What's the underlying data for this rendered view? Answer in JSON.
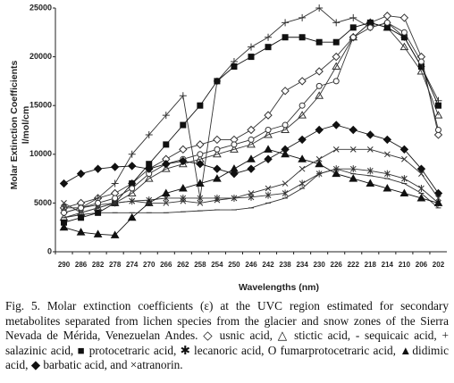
{
  "chart_data": {
    "type": "line",
    "y_label": [
      "Molar Extinction Coefficients",
      "l/mol/cm"
    ],
    "x_label": "Wavelengths (nm)",
    "categories": [
      "290",
      "286",
      "282",
      "278",
      "274",
      "270",
      "266",
      "262",
      "258",
      "254",
      "250",
      "246",
      "242",
      "238",
      "234",
      "230",
      "226",
      "222",
      "218",
      "214",
      "210",
      "206",
      "202"
    ],
    "ylim": [
      0,
      25000
    ],
    "yticks": [
      0,
      5000,
      10000,
      15000,
      20000,
      25000
    ],
    "grid": false,
    "series": [
      {
        "marker": "diamond-open",
        "color": "#333333",
        "values": [
          4500,
          5000,
          5500,
          6000,
          7000,
          8500,
          9500,
          10500,
          11000,
          11500,
          11500,
          12500,
          14000,
          16500,
          17500,
          18500,
          20000,
          22000,
          23500,
          24200,
          24000,
          20000,
          12000
        ]
      },
      {
        "marker": "triangle-open",
        "color": "#333333",
        "values": [
          3500,
          4000,
          4500,
          5000,
          6000,
          7500,
          8500,
          9000,
          9500,
          10000,
          10500,
          11000,
          12000,
          12500,
          14000,
          16000,
          19000,
          22000,
          23500,
          23000,
          21000,
          18500,
          14000
        ]
      },
      {
        "marker": "dash",
        "color": "#333333",
        "values": [
          3500,
          3800,
          4000,
          4000,
          4000,
          4000,
          4000,
          4100,
          4200,
          4300,
          4300,
          4500,
          5000,
          5500,
          6500,
          8000,
          8500,
          8000,
          7800,
          7500,
          7000,
          6000,
          4500
        ]
      },
      {
        "marker": "plus",
        "color": "#333333",
        "values": [
          4000,
          4500,
          5500,
          7000,
          10000,
          12000,
          14000,
          16000,
          5500,
          17500,
          19500,
          21000,
          22000,
          23500,
          24000,
          25000,
          23500,
          24000,
          23000,
          23500,
          22000,
          19000,
          15500
        ]
      },
      {
        "marker": "square",
        "color": "#111111",
        "values": [
          3000,
          3500,
          4000,
          5000,
          7000,
          9000,
          11000,
          13000,
          15000,
          17500,
          19000,
          20000,
          21000,
          22000,
          22000,
          21500,
          21500,
          23000,
          23500,
          23000,
          22000,
          19000,
          15000
        ]
      },
      {
        "marker": "asterisk",
        "color": "#333333",
        "values": [
          4500,
          4500,
          4800,
          5000,
          5200,
          5300,
          5500,
          5500,
          5500,
          5500,
          5500,
          5600,
          5800,
          6000,
          7000,
          8000,
          8500,
          8500,
          8300,
          8000,
          7500,
          6500,
          5000
        ]
      },
      {
        "marker": "circle-open",
        "color": "#333333",
        "values": [
          4000,
          4500,
          5000,
          5500,
          6500,
          8000,
          9000,
          9500,
          10000,
          10500,
          11000,
          11500,
          12500,
          13000,
          15000,
          17000,
          17500,
          22000,
          23000,
          23500,
          22500,
          19500,
          12500
        ]
      },
      {
        "marker": "triangle",
        "color": "#111111",
        "values": [
          2500,
          2000,
          1800,
          1700,
          3500,
          5000,
          6000,
          6500,
          7000,
          7500,
          8500,
          9500,
          10500,
          10000,
          9500,
          9000,
          8000,
          7500,
          7000,
          6500,
          6000,
          5500,
          5000
        ]
      },
      {
        "marker": "diamond",
        "color": "#111111",
        "values": [
          7000,
          8000,
          8500,
          8700,
          8800,
          8500,
          9000,
          9300,
          9000,
          8500,
          8000,
          8500,
          9500,
          10500,
          11500,
          12500,
          13000,
          12500,
          12000,
          11500,
          10500,
          8500,
          6000
        ]
      },
      {
        "marker": "cross",
        "color": "#333333",
        "values": [
          5000,
          4000,
          4500,
          5000,
          5200,
          5000,
          5000,
          5200,
          5000,
          5300,
          5500,
          6000,
          6500,
          7000,
          8500,
          9500,
          10500,
          10500,
          10500,
          10000,
          9500,
          8000,
          5500
        ]
      }
    ]
  },
  "caption": "Fig. 5. Molar extinction coefficients (ε) at the UVC region estimated for secondary metabolites separated from lichen species from the glacier and snow zones of the Sierra Nevada de Mérida, Venezuelan Andes. ◇ usnic acid, △ stictic acid, - sequicaic acid, + salazinic acid, ■ protocetraric acid, ✱ lecanoric acid, O fumarprotocetraric acid, ▲didimic acid, ◆ barbatic acid, and ×atranorin."
}
